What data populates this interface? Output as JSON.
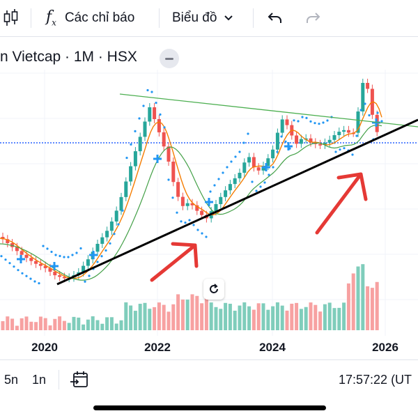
{
  "toolbar": {
    "indicators_label": "Các chỉ báo",
    "chart_type_label": "Biểu đồ",
    "icons": [
      "candles-icon",
      "fx-icon",
      "chevron-down-icon",
      "undo-icon",
      "redo-icon"
    ]
  },
  "legend": {
    "symbol_title": "n Vietcap · 1M · HSX"
  },
  "chart_data": {
    "type": "candlestick",
    "timeframe": "1M",
    "x_tick_labels": [
      "2020",
      "2022",
      "2024",
      "2026"
    ],
    "trendlines": [
      {
        "role": "support",
        "color": "#000000"
      },
      {
        "role": "resistance",
        "color": "#4caf50"
      }
    ],
    "overlays": [
      "moving-average-orange",
      "moving-average-green",
      "parabolic-sar-dots"
    ],
    "annotations": [
      "red-arrow-up",
      "red-arrow-up"
    ],
    "colors": {
      "up": "#26a69a",
      "down": "#ef5350",
      "volume_up": "#7fcdbb",
      "volume_down": "#f7a1a1",
      "sar": "#2196f3"
    }
  },
  "bottombar": {
    "range_5y": "5n",
    "range_1y": "1n",
    "time": "17:57:22 (UT"
  }
}
